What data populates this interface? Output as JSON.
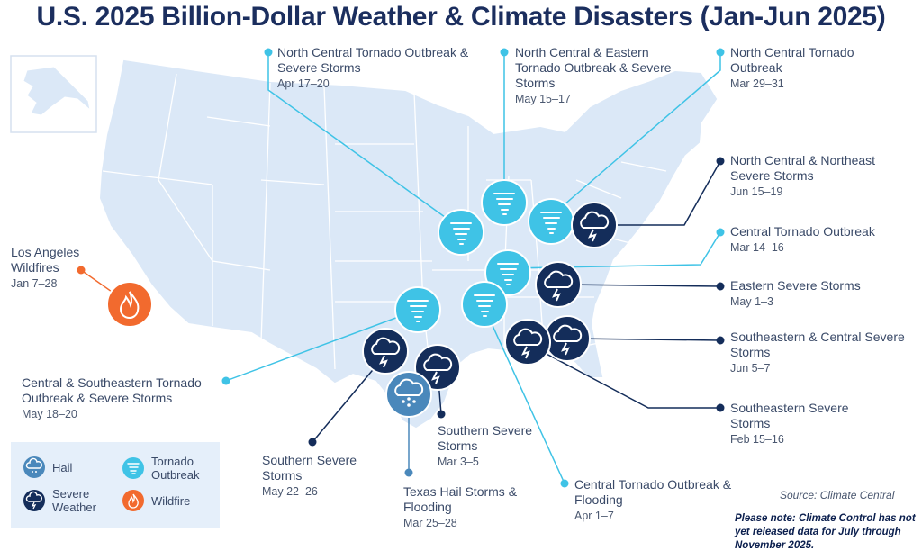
{
  "title": "U.S. 2025 Billion-Dollar Weather & Climate Disasters (Jan-Jun 2025)",
  "colors": {
    "tornado": "#3fc3e6",
    "severe": "#142d5a",
    "hail": "#4a88bb",
    "wildfire": "#f26a2e",
    "map_fill": "#dbe8f7",
    "map_border": "#ffffff"
  },
  "events": [
    {
      "name": "North Central Tornado Outbreak & Severe Storms",
      "date": "Apr 17–20",
      "type": "tornado",
      "icon": "tornado-icon"
    },
    {
      "name": "North Central & Eastern Tornado Outbreak & Severe Storms",
      "date": "May 15–17",
      "type": "tornado",
      "icon": "tornado-icon"
    },
    {
      "name": "North Central Tornado Outbreak",
      "date": "Mar 29–31",
      "type": "tornado",
      "icon": "tornado-icon"
    },
    {
      "name": "North Central & Northeast Severe Storms",
      "date": "Jun 15–19",
      "type": "severe",
      "icon": "storm-icon"
    },
    {
      "name": "Central Tornado Outbreak",
      "date": "Mar 14–16",
      "type": "tornado",
      "icon": "tornado-icon"
    },
    {
      "name": "Eastern Severe Storms",
      "date": "May 1–3",
      "type": "severe",
      "icon": "storm-icon"
    },
    {
      "name": "Southeastern & Central Severe Storms",
      "date": "Jun 5–7",
      "type": "severe",
      "icon": "storm-icon"
    },
    {
      "name": "Southeastern Severe Storms",
      "date": "Feb 15–16",
      "type": "severe",
      "icon": "storm-icon"
    },
    {
      "name": "Central Tornado Outbreak & Flooding",
      "date": "Apr 1–7",
      "type": "tornado",
      "icon": "tornado-icon"
    },
    {
      "name": "Texas Hail Storms & Flooding",
      "date": "Mar 25–28",
      "type": "hail",
      "icon": "hail-icon"
    },
    {
      "name": "Southern Severe Storms",
      "date": "Mar 3–5",
      "type": "severe",
      "icon": "storm-icon"
    },
    {
      "name": "Southern Severe Storms",
      "date": "May 22–26",
      "type": "severe",
      "icon": "storm-icon"
    },
    {
      "name": "Central & Southeastern Tornado Outbreak & Severe Storms",
      "date": "May 18–20",
      "type": "tornado",
      "icon": "tornado-icon"
    },
    {
      "name": "Los Angeles Wildfires",
      "date": "Jan 7–28",
      "type": "wildfire",
      "icon": "wildfire-icon"
    }
  ],
  "legend": {
    "hail": "Hail",
    "tornado": "Tornado Outbreak",
    "severe": "Severe Weather",
    "wildfire": "Wildfire"
  },
  "source": "Source: Climate Central",
  "note": "Please note: Climate Control has not yet released data for July through November 2025."
}
